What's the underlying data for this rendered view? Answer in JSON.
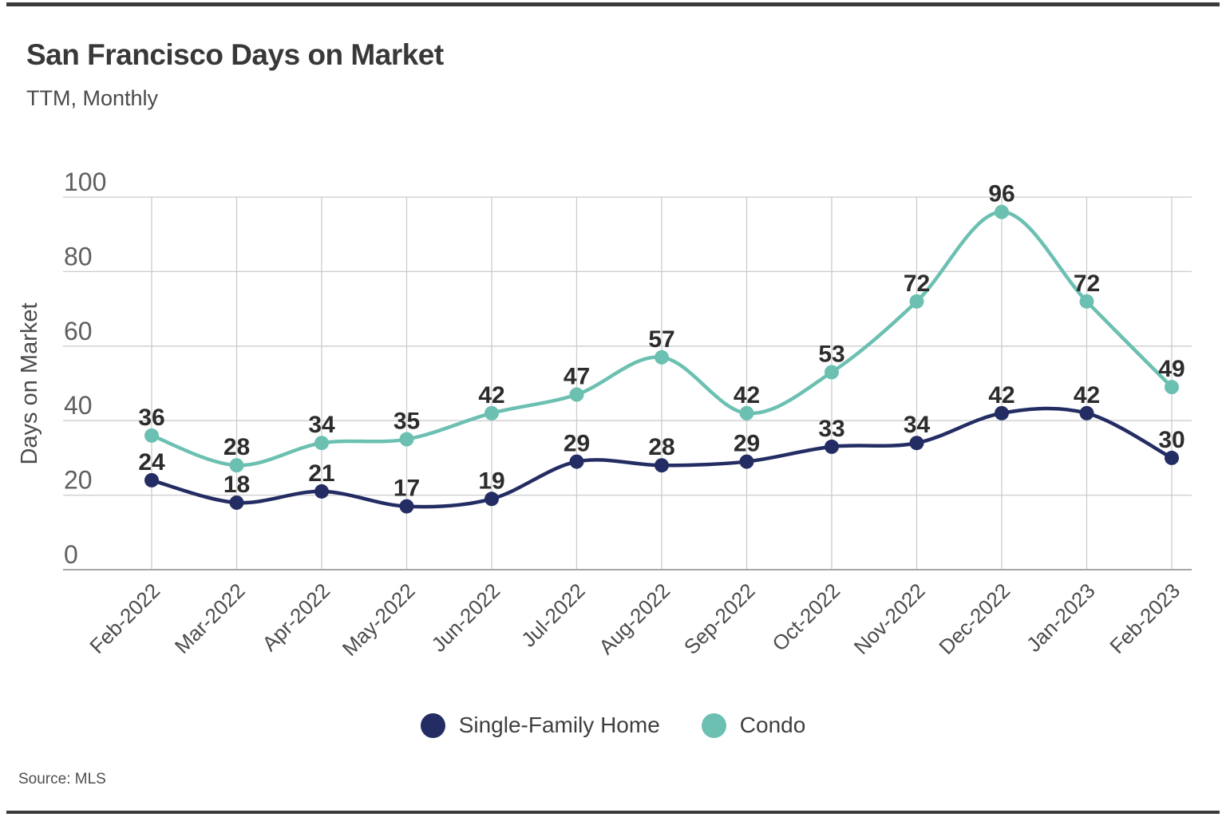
{
  "chart_data": {
    "type": "line",
    "title": "San Francisco Days on Market",
    "subtitle": "TTM, Monthly",
    "ylabel": "Days on Market",
    "ylim": [
      0,
      100
    ],
    "yticks": [
      0,
      20,
      40,
      60,
      80,
      100
    ],
    "grid": true,
    "legend_position": "bottom-center",
    "point_labels_shown": true,
    "categories": [
      "Feb-2022",
      "Mar-2022",
      "Apr-2022",
      "May-2022",
      "Jun-2022",
      "Jul-2022",
      "Aug-2022",
      "Sep-2022",
      "Oct-2022",
      "Nov-2022",
      "Dec-2022",
      "Jan-2023",
      "Feb-2023"
    ],
    "series": [
      {
        "name": "Single-Family Home",
        "color": "#232D63",
        "values": [
          24,
          18,
          21,
          17,
          19,
          29,
          28,
          29,
          33,
          34,
          42,
          42,
          30
        ]
      },
      {
        "name": "Condo",
        "color": "#6BC0B1",
        "values": [
          36,
          28,
          34,
          35,
          42,
          47,
          57,
          42,
          53,
          72,
          96,
          72,
          49
        ]
      }
    ]
  },
  "source_note": "Source: MLS",
  "colors": {
    "grid": "#cccccc",
    "axis": "#a6a6a6",
    "tick_text": "#5f5f5f",
    "axis_label_text": "#4c4c4c",
    "data_label": "#2c2c2c",
    "title_text": "#383838",
    "border": "#3b3b3b"
  }
}
